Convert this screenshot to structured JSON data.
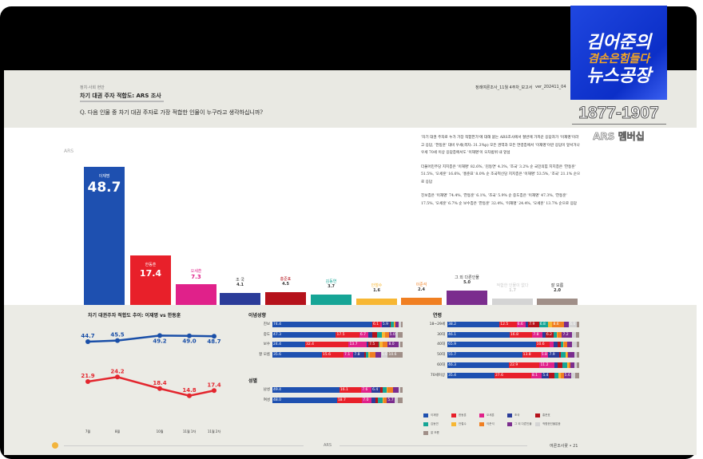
{
  "header": {
    "category": "정치·사회 현안",
    "title": "차기 대권 주자 적합도: ARS 조사",
    "question": "Q. 다음 인물 중 차기 대권 주자로 가장 적합한 인물이 누구라고 생각하십니까?",
    "file": "정례여론조사_11월 4주차_보고서",
    "version": "ver_202411_04"
  },
  "logo": {
    "line1": "김어준의",
    "line2": "겸손은힘들다",
    "line3": "뉴스공장",
    "phone": "1877-1907",
    "membership": "ARS 멤버십"
  },
  "summary": [
    "'차기 대권 주자로 누가 가장 적합한가'에 대해 묻는 ARS조사에서 절반에 가까운 응답자가 '이재명'이라고 응답, '한동훈' 대비 우세(격차: 31.3%p) 모든 권역과 모든 연령층에서 '이재명'이란 응답이 앞서거나 우세 70세 이상 응답층에서도 '이재명'이 오차범위 내 앞섬",
    "더불어민주당 지지층은 '이재명' 82.6%, '김동연' 4.3%, '조국' 3.2% 순 국민의힘 지지층은 '한동훈' 51.5%, '오세훈' 16.6%, '홍준표' 8.0% 순 조국혁신당 지지층은 '이재명' 53.5%, '조국' 21.1% 순으로 응답",
    "진보층은 '이재명' 74.4%, '한동훈' 6.1%, '조국' 5.9% 순 중도층은 '이재명' 47.3%, '한동훈' 17.5%, '오세훈' 6.7% 순 보수층은 '한동훈' 32.4%, '이재명' 24.4%, '오세훈' 13.7% 순으로 응답"
  ],
  "chart_data": [
    {
      "type": "bar",
      "title": "ARS",
      "categories": [
        "이재명",
        "한동훈",
        "오세훈",
        "조 국",
        "홍준표",
        "김동연",
        "안철수",
        "이준석",
        "그 외 다른인물",
        "적합한 인물이 없다",
        "잘 모름"
      ],
      "values": [
        48.7,
        17.4,
        7.3,
        4.1,
        4.5,
        3.7,
        1.6,
        2.4,
        5.0,
        1.7,
        2.0
      ],
      "colors": [
        "#1e50b0",
        "#e8202a",
        "#e0218a",
        "#2b3c99",
        "#b5121b",
        "#16a596",
        "#f7b733",
        "#f07f22",
        "#7b2d8e",
        "#d4d4d4",
        "#a08f88"
      ]
    },
    {
      "type": "line",
      "title": "차기 대권주자 적합도 추이: 이재명 vs 한동훈",
      "x": [
        "7월",
        "8월",
        "10월",
        "11월 1차",
        "11월 2차"
      ],
      "series": [
        {
          "name": "이재명",
          "values": [
            44.7,
            45.5,
            49.2,
            49.0,
            48.7
          ],
          "color": "#1a4fa8"
        },
        {
          "name": "한동훈",
          "values": [
            21.9,
            24.2,
            18.4,
            14.8,
            17.4
          ],
          "color": "#e3262e"
        }
      ],
      "ylim": [
        0,
        60
      ]
    },
    {
      "type": "bar",
      "title": "이념성향",
      "stacked": true,
      "rows": [
        {
          "label": "진보",
          "values": [
            74.4,
            6.1,
            1.0,
            5.9,
            0.8,
            2.5,
            0.5,
            0.6,
            2.4,
            1.5,
            1.3
          ]
        },
        {
          "label": "중도",
          "values": [
            47.3,
            17.5,
            6.7,
            3.0,
            3.2,
            4.0,
            2.0,
            3.0,
            5.0,
            1.5,
            3.8
          ]
        },
        {
          "label": "보수",
          "values": [
            24.4,
            32.4,
            13.7,
            1.0,
            7.5,
            1.0,
            2.0,
            4.0,
            8.0,
            1.0,
            2.0
          ]
        },
        {
          "label": "잘 모름",
          "values": [
            35.6,
            15.6,
            7.1,
            7.8,
            1.0,
            2.0,
            1.0,
            4.0,
            4.0,
            5.0,
            10.6
          ]
        }
      ]
    },
    {
      "type": "bar",
      "title": "성별",
      "stacked": true,
      "rows": [
        {
          "label": "남성",
          "values": [
            49.4,
            16.1,
            7.6,
            6.4,
            2.0,
            2.5,
            1.0,
            4.0,
            4.0,
            1.5,
            1.5
          ]
        },
        {
          "label": "여성",
          "values": [
            48.0,
            18.7,
            7.0,
            3.0,
            2.0,
            3.0,
            1.0,
            2.5,
            5.7,
            2.5,
            3.4
          ]
        }
      ]
    },
    {
      "type": "bar",
      "title": "연령",
      "stacked": true,
      "rows": [
        {
          "label": "18~29세",
          "values": [
            38.2,
            12.5,
            6.6,
            2.0,
            7.9,
            6.8,
            3.0,
            8.6,
            3.5,
            6.0,
            1.5
          ]
        },
        {
          "label": "30대",
          "values": [
            46.1,
            16.8,
            7.8,
            2.0,
            6.2,
            2.0,
            1.0,
            3.0,
            7.2,
            3.0,
            2.5
          ]
        },
        {
          "label": "40대",
          "values": [
            65.9,
            10.6,
            3.0,
            2.5,
            2.5,
            2.0,
            0.8,
            2.0,
            3.5,
            4.0,
            1.5
          ]
        },
        {
          "label": "50대",
          "values": [
            55.7,
            13.8,
            5.8,
            7.9,
            1.5,
            3.5,
            1.0,
            1.0,
            4.5,
            1.5,
            2.0
          ]
        },
        {
          "label": "60대",
          "values": [
            46.3,
            22.9,
            11.2,
            2.5,
            3.5,
            3.5,
            1.0,
            1.5,
            3.0,
            1.5,
            2.0
          ]
        },
        {
          "label": "70세이상",
          "values": [
            35.4,
            27.6,
            8.1,
            5.4,
            4.0,
            3.0,
            2.0,
            2.0,
            5.6,
            3.0,
            3.0
          ]
        }
      ]
    }
  ],
  "legend": [
    "이재명",
    "한동훈",
    "오세훈",
    "조국",
    "홍준표",
    "김동연",
    "안철수",
    "이준석",
    "그 외 다른인물",
    "적합한인물없음",
    "잘 모름"
  ],
  "footer": {
    "center": "ARS",
    "right": "여론조사꽃 • 21"
  }
}
